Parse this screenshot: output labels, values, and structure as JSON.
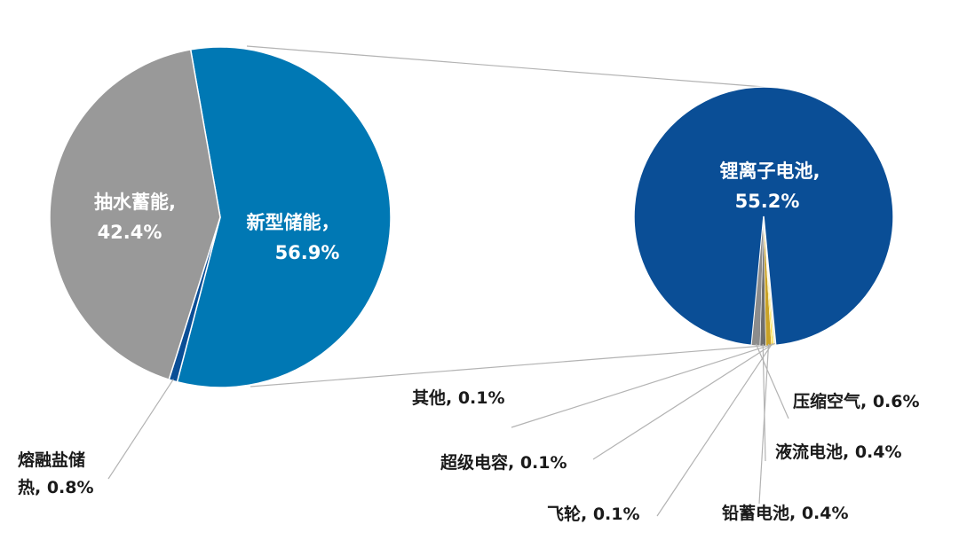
{
  "chart_data": [
    {
      "type": "pie",
      "slices": [
        {
          "name": "新型储能",
          "value": 56.9,
          "color": "#0078b4",
          "label_line1": "新型储能，",
          "label_line2": "56.9%"
        },
        {
          "name": "熔融盐储热",
          "value": 0.8,
          "color": "#0a4e96",
          "label_line1": "熔融盐储",
          "label_line2": "热, 0.8%"
        },
        {
          "name": "抽水蓄能",
          "value": 42.4,
          "color": "#999999",
          "label_line1": "抽水蓄能,",
          "label_line2": "42.4%"
        }
      ]
    },
    {
      "type": "pie",
      "slices": [
        {
          "name": "锂离子电池",
          "value": 55.2,
          "color": "#0a4e96",
          "label_line1": "锂离子电池,",
          "label_line2": "55.2%"
        },
        {
          "name": "压缩空气",
          "value": 0.6,
          "color": "#8c8c8c",
          "label": "压缩空气, 0.6%"
        },
        {
          "name": "液流电池",
          "value": 0.4,
          "color": "#6e6e6e",
          "label": "液流电池, 0.4%"
        },
        {
          "name": "铅蓄电池",
          "value": 0.4,
          "color": "#c9a227",
          "label": "铅蓄电池, 0.4%"
        },
        {
          "name": "飞轮",
          "value": 0.1,
          "color": "#ffd100",
          "label": "飞轮, 0.1%"
        },
        {
          "name": "超级电容",
          "value": 0.1,
          "color": "#f2e05a",
          "label": "超级电容, 0.1%"
        },
        {
          "name": "其他",
          "value": 0.1,
          "color": "#e8e8e8",
          "label": "其他, 0.1%"
        }
      ]
    }
  ]
}
